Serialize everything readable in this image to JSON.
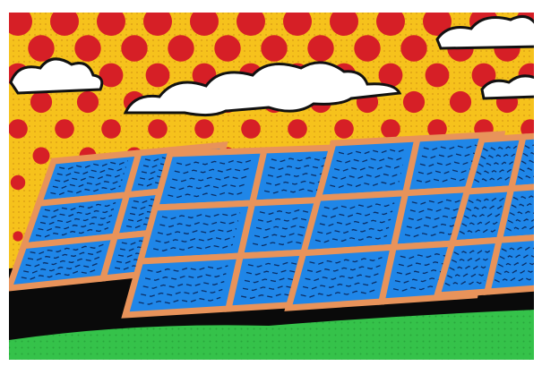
{
  "scene": {
    "description_visible_text": "",
    "colors": {
      "background": "#ffffff",
      "sky_yellow": "#f6c21c",
      "sky_dot_red": "#d61f26",
      "halftone": "#c98a10",
      "cloud_white": "#ffffff",
      "outline": "#111111",
      "panel_blue": "#1f86e8",
      "panel_frame": "#e8935a",
      "grass_green": "#35c24a",
      "ground_shadow": "#0a0a0a"
    },
    "icons": [
      "cloud-icon",
      "solar-panel-icon"
    ]
  }
}
